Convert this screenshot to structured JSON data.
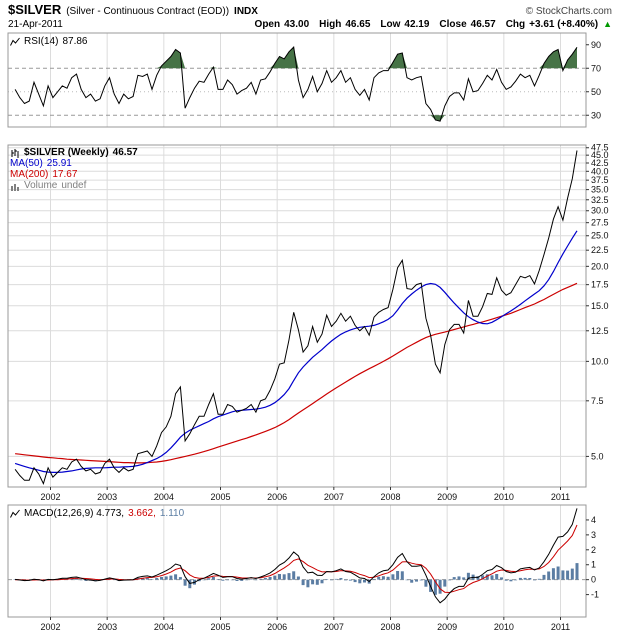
{
  "header": {
    "symbol": "$SILVER",
    "description": "(Silver - Continuous Contract (EOD))",
    "exchange": "INDX",
    "copyright": "© StockCharts.com",
    "date": "21-Apr-2011",
    "quote": {
      "open_label": "Open",
      "open": "43.00",
      "high_label": "High",
      "high": "46.65",
      "low_label": "Low",
      "low": "42.19",
      "close_label": "Close",
      "close": "46.57",
      "chg_label": "Chg",
      "chg": "+3.61 (+8.40%)",
      "arrow": "▲"
    }
  },
  "colors": {
    "up": "#009900",
    "grid": "#dcdcdc",
    "panel_border": "#999999",
    "axis": "#333333",
    "rsi_line": "#000000",
    "rsi_fill": "#467346",
    "price_line": "#000000",
    "ma50": "#0000cc",
    "ma200": "#cc0000",
    "volume_gray": "#808080",
    "macd_line": "#000000",
    "macd_signal": "#cc0000",
    "macd_hist": "#5b7da3"
  },
  "panels": {
    "rsi": {
      "label": "RSI(14)",
      "value": "87.86"
    },
    "price": {
      "rows": [
        {
          "label": "$SILVER (Weekly)",
          "value": "46.57",
          "color": "#000000"
        },
        {
          "label": "MA(50)",
          "value": "25.91",
          "color": "#0000cc"
        },
        {
          "label": "MA(200)",
          "value": "17.67",
          "color": "#cc0000"
        },
        {
          "label": "Volume",
          "value": "undef",
          "color": "#808080"
        }
      ]
    },
    "macd": {
      "parts": [
        {
          "text": "MACD(12,26,9) 4.773,",
          "color": "#000000"
        },
        {
          "text": "3.662,",
          "color": "#cc0000"
        },
        {
          "text": "1.110",
          "color": "#5b7da3"
        }
      ]
    }
  },
  "chart_data": [
    {
      "id": "rsi",
      "type": "line",
      "title": "RSI(14)",
      "last_value": 87.86,
      "x_start": 2001.375,
      "x_step": 0.0833333,
      "xlim": [
        2001.25,
        2011.45
      ],
      "xticks": [
        2002,
        2003,
        2004,
        2005,
        2006,
        2007,
        2008,
        2009,
        2010,
        2011
      ],
      "yscale": "linear",
      "ylim": [
        20,
        100
      ],
      "ytick_values": [
        90,
        70,
        50,
        30
      ],
      "ytick_labels": [
        "90",
        "70",
        "50",
        "30"
      ],
      "hlines": [
        {
          "y": 70,
          "color": "#999999",
          "dash": "4,3"
        },
        {
          "y": 50,
          "color": "#bbbbbb",
          "dash": "1,3"
        },
        {
          "y": 30,
          "color": "#999999",
          "dash": "4,3"
        }
      ],
      "band": {
        "upper": 70,
        "lower": 30,
        "color": "#467346"
      },
      "series": [
        {
          "id": "rsi-line",
          "name": "RSI(14)",
          "color": "#000000",
          "width": 1,
          "values": [
            52,
            45,
            40,
            42,
            58,
            48,
            38,
            55,
            45,
            50,
            55,
            53,
            62,
            65,
            52,
            45,
            48,
            42,
            44,
            55,
            62,
            48,
            40,
            48,
            44,
            46,
            64,
            63,
            65,
            52,
            64,
            72,
            76,
            80,
            86,
            83,
            36,
            45,
            53,
            59,
            58,
            65,
            71,
            52,
            52,
            60,
            56,
            48,
            51,
            53,
            58,
            48,
            60,
            61,
            67,
            74,
            80,
            78,
            84,
            88,
            60,
            45,
            52,
            63,
            50,
            57,
            68,
            58,
            62,
            68,
            58,
            62,
            52,
            47,
            52,
            43,
            62,
            66,
            68,
            68,
            75,
            82,
            83,
            62,
            60,
            62,
            63,
            40,
            35,
            26,
            25,
            38,
            46,
            49,
            49,
            43,
            61,
            50,
            51,
            57,
            64,
            60,
            69,
            58,
            52,
            54,
            59,
            65,
            62,
            64,
            55,
            64,
            74,
            80,
            84,
            86,
            68,
            77,
            82,
            87.86
          ]
        }
      ]
    },
    {
      "id": "price",
      "type": "line",
      "title": "$SILVER (Weekly)",
      "last_value": 46.57,
      "x_start": 2001.375,
      "x_step": 0.0833333,
      "xlim": [
        2001.25,
        2011.45
      ],
      "xticks": [
        2002,
        2003,
        2004,
        2005,
        2006,
        2007,
        2008,
        2009,
        2010,
        2011
      ],
      "yscale": "log",
      "ylim": [
        4.0,
        48.46
      ],
      "ytick_values": [
        47.5,
        45,
        42.5,
        40,
        37.5,
        35,
        32.5,
        30,
        27.5,
        25,
        22.5,
        20,
        17.5,
        15,
        12.5,
        10,
        7.5,
        5
      ],
      "ytick_labels": [
        "47.5",
        "45.0",
        "42.5",
        "40.0",
        "37.5",
        "35.0",
        "32.5",
        "30.0",
        "27.5",
        "25.0",
        "22.5",
        "20.0",
        "17.5",
        "15.0",
        "12.5",
        "10.0",
        "7.5",
        "5.0"
      ],
      "hlines": [],
      "series": [
        {
          "id": "ma200-line",
          "name": "MA(200)",
          "color": "#cc0000",
          "width": 1.2,
          "values": [
            5.1,
            5.08,
            5.06,
            5.04,
            5.02,
            5.0,
            4.98,
            4.96,
            4.95,
            4.93,
            4.92,
            4.9,
            4.89,
            4.88,
            4.87,
            4.86,
            4.85,
            4.84,
            4.83,
            4.82,
            4.81,
            4.8,
            4.79,
            4.78,
            4.78,
            4.77,
            4.77,
            4.77,
            4.78,
            4.79,
            4.8,
            4.82,
            4.85,
            4.88,
            4.92,
            4.96,
            5.0,
            5.04,
            5.08,
            5.13,
            5.18,
            5.23,
            5.29,
            5.35,
            5.41,
            5.47,
            5.53,
            5.59,
            5.65,
            5.71,
            5.78,
            5.85,
            5.92,
            6.0,
            6.08,
            6.17,
            6.28,
            6.4,
            6.54,
            6.7,
            6.86,
            7.02,
            7.18,
            7.35,
            7.52,
            7.7,
            7.88,
            8.06,
            8.24,
            8.42,
            8.6,
            8.78,
            8.96,
            9.14,
            9.31,
            9.48,
            9.65,
            9.82,
            10.0,
            10.19,
            10.4,
            10.62,
            10.85,
            11.07,
            11.28,
            11.49,
            11.7,
            11.89,
            12.05,
            12.18,
            12.28,
            12.38,
            12.5,
            12.62,
            12.74,
            12.86,
            12.98,
            13.1,
            13.22,
            13.34,
            13.46,
            13.6,
            13.75,
            13.9,
            14.05,
            14.2,
            14.4,
            14.6,
            14.8,
            15.0,
            15.2,
            15.45,
            15.7,
            16.0,
            16.3,
            16.6,
            16.9,
            17.15,
            17.4,
            17.67
          ]
        },
        {
          "id": "ma50-line",
          "name": "MA(50)",
          "color": "#0000cc",
          "width": 1.2,
          "values": [
            4.75,
            4.7,
            4.65,
            4.6,
            4.56,
            4.52,
            4.48,
            4.46,
            4.45,
            4.45,
            4.46,
            4.48,
            4.5,
            4.53,
            4.56,
            4.58,
            4.59,
            4.6,
            4.6,
            4.6,
            4.61,
            4.62,
            4.62,
            4.63,
            4.64,
            4.65,
            4.68,
            4.72,
            4.78,
            4.85,
            4.92,
            5.02,
            5.15,
            5.32,
            5.52,
            5.75,
            5.92,
            6.05,
            6.15,
            6.25,
            6.35,
            6.45,
            6.58,
            6.68,
            6.76,
            6.84,
            6.92,
            6.98,
            7.0,
            7.02,
            7.04,
            7.06,
            7.1,
            7.16,
            7.26,
            7.4,
            7.6,
            7.85,
            8.2,
            8.7,
            9.2,
            9.6,
            9.95,
            10.3,
            10.6,
            10.9,
            11.25,
            11.6,
            11.9,
            12.18,
            12.4,
            12.58,
            12.72,
            12.82,
            12.88,
            12.92,
            13.0,
            13.15,
            13.35,
            13.58,
            13.95,
            14.55,
            15.25,
            15.85,
            16.35,
            16.8,
            17.2,
            17.5,
            17.65,
            17.55,
            17.15,
            16.55,
            15.9,
            15.3,
            14.75,
            14.25,
            13.85,
            13.55,
            13.32,
            13.18,
            13.15,
            13.3,
            13.55,
            13.85,
            14.15,
            14.45,
            14.78,
            15.15,
            15.55,
            15.95,
            16.35,
            16.75,
            17.35,
            18.15,
            19.25,
            20.55,
            21.9,
            23.2,
            24.55,
            25.91
          ]
        },
        {
          "id": "price-line",
          "name": "$SILVER (Weekly)",
          "color": "#000000",
          "width": 1,
          "values": [
            4.55,
            4.35,
            4.2,
            4.2,
            4.6,
            4.4,
            4.1,
            4.6,
            4.3,
            4.45,
            4.6,
            4.55,
            4.8,
            4.9,
            4.65,
            4.5,
            4.55,
            4.4,
            4.45,
            4.75,
            4.9,
            4.6,
            4.45,
            4.6,
            4.5,
            4.55,
            5.1,
            5.15,
            5.2,
            5.0,
            5.4,
            5.95,
            6.2,
            6.7,
            7.9,
            8.3,
            5.6,
            5.9,
            6.3,
            6.7,
            6.7,
            7.3,
            7.9,
            6.8,
            6.8,
            7.3,
            7.2,
            6.9,
            7.0,
            7.1,
            7.3,
            6.9,
            7.5,
            7.6,
            8.1,
            8.8,
            9.8,
            9.9,
            11.7,
            14.3,
            12.6,
            10.7,
            11.2,
            12.9,
            11.5,
            12.2,
            14.0,
            12.9,
            13.4,
            14.2,
            13.4,
            13.9,
            13.0,
            12.5,
            12.9,
            12.1,
            13.8,
            14.3,
            14.6,
            14.8,
            16.9,
            19.8,
            20.9,
            17.0,
            16.9,
            17.5,
            17.7,
            13.7,
            12.1,
            9.8,
            9.2,
            11.3,
            12.6,
            13.1,
            13.1,
            12.3,
            15.6,
            13.9,
            13.9,
            14.9,
            16.4,
            16.3,
            18.4,
            16.8,
            16.2,
            16.5,
            17.5,
            18.6,
            18.4,
            18.7,
            17.6,
            19.4,
            21.8,
            24.6,
            28.2,
            30.9,
            28.0,
            32.9,
            37.9,
            46.57
          ]
        }
      ]
    },
    {
      "id": "macd",
      "type": "line+histogram",
      "title": "MACD(12,26,9)",
      "last_values": {
        "macd": 4.773,
        "signal": 3.662,
        "histogram": 1.11
      },
      "x_start": 2001.375,
      "x_step": 0.0833333,
      "xlim": [
        2001.25,
        2011.45
      ],
      "xticks": [
        2002,
        2003,
        2004,
        2005,
        2006,
        2007,
        2008,
        2009,
        2010,
        2011
      ],
      "yscale": "linear",
      "ylim": [
        -2.5,
        5.0
      ],
      "ytick_values": [
        4,
        3,
        2,
        1,
        0,
        -1
      ],
      "ytick_labels": [
        "4",
        "3",
        "2",
        "1",
        "0",
        "-1"
      ],
      "hlines": [
        {
          "y": 0,
          "color": "#999999",
          "dash": "4,3"
        }
      ],
      "histogram_color": "#5b7da3",
      "series": [
        {
          "id": "macd-signal-line",
          "name": "Signal",
          "color": "#cc0000",
          "width": 1,
          "values": [
            0.0,
            0.0,
            -0.02,
            -0.03,
            -0.02,
            -0.01,
            -0.03,
            -0.02,
            -0.01,
            0.0,
            0.02,
            0.04,
            0.07,
            0.1,
            0.1,
            0.08,
            0.05,
            0.02,
            0.0,
            0.01,
            0.04,
            0.05,
            0.02,
            0.0,
            -0.01,
            0.0,
            0.04,
            0.1,
            0.14,
            0.15,
            0.19,
            0.27,
            0.38,
            0.51,
            0.69,
            0.78,
            0.6,
            0.32,
            0.15,
            0.1,
            0.1,
            0.15,
            0.24,
            0.26,
            0.22,
            0.21,
            0.21,
            0.17,
            0.12,
            0.11,
            0.12,
            0.11,
            0.13,
            0.19,
            0.27,
            0.41,
            0.6,
            0.79,
            1.01,
            1.29,
            1.39,
            1.21,
            0.96,
            0.81,
            0.64,
            0.52,
            0.53,
            0.53,
            0.55,
            0.61,
            0.59,
            0.56,
            0.48,
            0.36,
            0.27,
            0.14,
            0.16,
            0.26,
            0.37,
            0.46,
            0.64,
            0.92,
            1.19,
            1.2,
            1.1,
            1.03,
            1.0,
            0.77,
            0.37,
            -0.14,
            -0.61,
            -0.84,
            -0.86,
            -0.77,
            -0.67,
            -0.6,
            -0.36,
            -0.19,
            -0.08,
            0.06,
            0.24,
            0.39,
            0.57,
            0.65,
            0.62,
            0.56,
            0.54,
            0.6,
            0.66,
            0.71,
            0.69,
            0.72,
            0.88,
            1.15,
            1.53,
            1.97,
            2.28,
            2.59,
            2.96,
            3.662
          ]
        },
        {
          "id": "macd-line",
          "name": "MACD",
          "color": "#000000",
          "width": 1,
          "values": [
            0.02,
            -0.02,
            -0.06,
            -0.05,
            0.03,
            0.0,
            -0.08,
            0.02,
            0.0,
            0.04,
            0.09,
            0.1,
            0.15,
            0.18,
            0.1,
            0.0,
            -0.02,
            -0.08,
            -0.05,
            0.04,
            0.12,
            0.06,
            -0.06,
            -0.03,
            -0.02,
            0.0,
            0.15,
            0.22,
            0.25,
            0.18,
            0.3,
            0.45,
            0.6,
            0.78,
            1.05,
            0.95,
            0.2,
            -0.25,
            -0.18,
            0.0,
            0.1,
            0.25,
            0.42,
            0.3,
            0.15,
            0.2,
            0.2,
            0.08,
            0.04,
            0.08,
            0.14,
            0.08,
            0.18,
            0.3,
            0.45,
            0.68,
            0.98,
            1.15,
            1.45,
            1.85,
            1.6,
            0.85,
            0.45,
            0.5,
            0.3,
            0.28,
            0.55,
            0.52,
            0.6,
            0.72,
            0.55,
            0.5,
            0.32,
            0.12,
            0.08,
            -0.12,
            0.2,
            0.45,
            0.6,
            0.65,
            1.0,
            1.5,
            1.75,
            1.2,
            0.9,
            0.9,
            0.95,
            0.3,
            -0.45,
            -1.15,
            -1.55,
            -1.3,
            -0.9,
            -0.6,
            -0.45,
            -0.45,
            0.1,
            0.15,
            0.15,
            0.35,
            0.6,
            0.68,
            0.95,
            0.8,
            0.55,
            0.45,
            0.5,
            0.72,
            0.78,
            0.82,
            0.65,
            0.78,
            1.2,
            1.7,
            2.3,
            2.85,
            2.9,
            3.2,
            3.7,
            4.773
          ]
        }
      ]
    }
  ]
}
